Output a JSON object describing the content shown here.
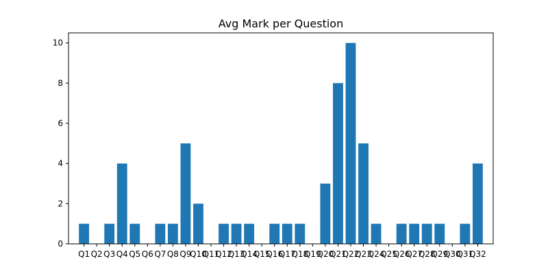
{
  "chart_data": {
    "type": "bar",
    "title": "Avg Mark per Question",
    "xlabel": "",
    "ylabel": "",
    "categories": [
      "Q1",
      "Q2",
      "Q3",
      "Q4",
      "Q5",
      "Q6",
      "Q7",
      "Q8",
      "Q9",
      "Q10",
      "Q11",
      "Q12",
      "Q13",
      "Q14",
      "Q15",
      "Q16",
      "Q17",
      "Q18",
      "Q19",
      "Q20",
      "Q21",
      "Q22",
      "Q23",
      "Q24",
      "Q25",
      "Q26",
      "Q27",
      "Q28",
      "Q29",
      "Q30",
      "Q31",
      "Q32"
    ],
    "values": [
      1,
      0,
      1,
      4,
      1,
      0,
      1,
      1,
      5,
      2,
      0,
      1,
      1,
      1,
      0,
      1,
      1,
      1,
      0,
      3,
      8,
      10,
      5,
      1,
      0,
      1,
      1,
      1,
      1,
      0,
      1,
      4
    ],
    "ylim": [
      0,
      10.5
    ],
    "yticks": [
      0,
      2,
      4,
      6,
      8,
      10
    ],
    "bar_color": "#1f77b4",
    "grid": false,
    "legend": "none"
  }
}
